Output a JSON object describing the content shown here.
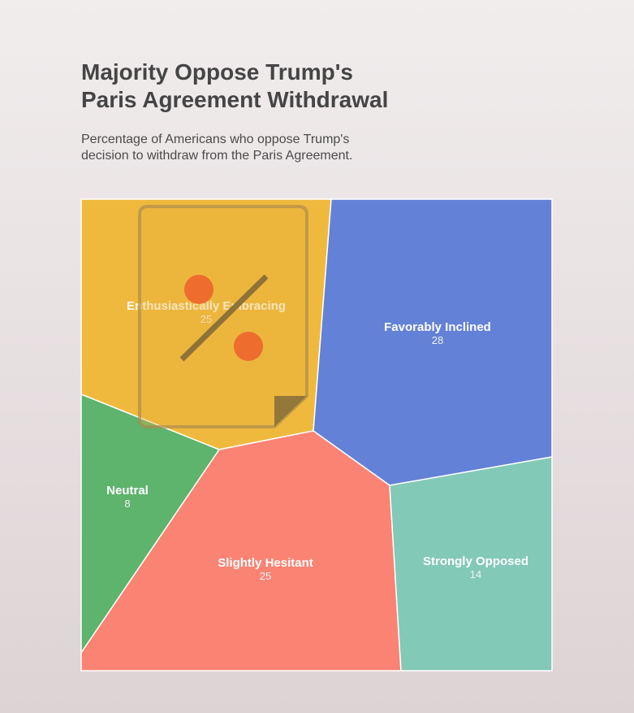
{
  "header": {
    "title": "Majority Oppose Trump's\nParis Agreement Withdrawal",
    "subtitle": "Percentage of Americans who oppose Trump's decision to withdraw from the Paris Agreement."
  },
  "chart_data": {
    "type": "voronoi-treemap",
    "title": "Majority Oppose Trump's\nParis Agreement Withdrawal",
    "subtitle": "Percentage of Americans who oppose Trump's decision to withdraw from the Paris Agreement.",
    "categories": [
      "Enthusiastically Embracing",
      "Favorably Inclined",
      "Neutral",
      "Slightly Hesitant",
      "Strongly Opposed"
    ],
    "values": [
      25,
      28,
      8,
      25,
      14
    ],
    "colors": [
      "#efb93d",
      "#6381d6",
      "#5eb36d",
      "#fa8374",
      "#82c9b8"
    ],
    "legend": "none",
    "decoration": "percent-document-icon"
  }
}
